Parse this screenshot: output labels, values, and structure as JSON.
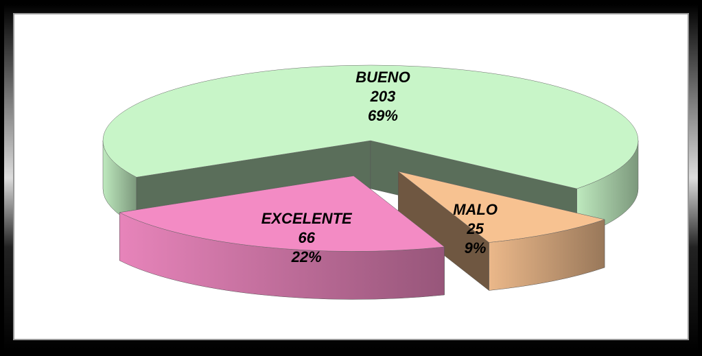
{
  "chart_data": {
    "type": "pie3d",
    "categories": [
      "BUENO",
      "MALO",
      "EXCELENTE"
    ],
    "values": [
      203,
      25,
      66
    ],
    "percentages": [
      69,
      9,
      22
    ],
    "percentage_labels": [
      "69%",
      "9%",
      "22%"
    ],
    "colors": [
      "#c8f5c8",
      "#f7c291",
      "#f38bc4"
    ],
    "exploded": [
      false,
      true,
      true
    ]
  }
}
